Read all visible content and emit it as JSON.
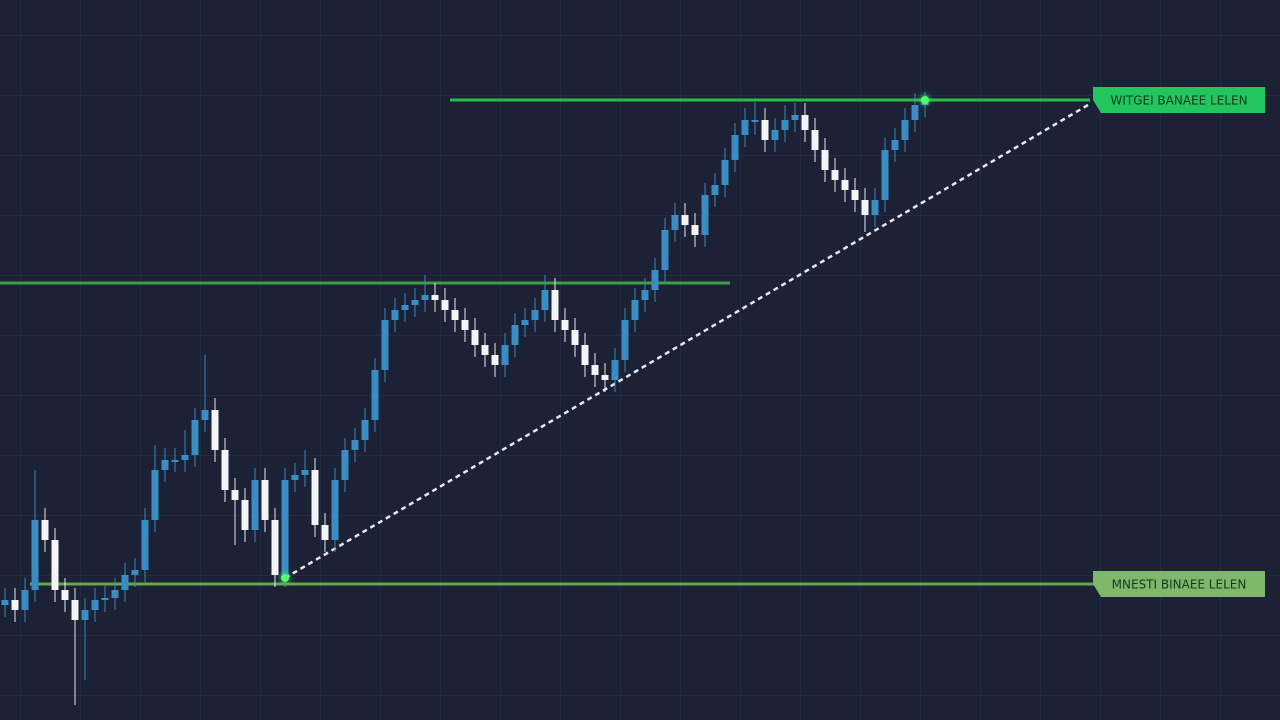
{
  "chart_data": {
    "type": "candlestick",
    "xlim": [
      -0.5,
      127.5
    ],
    "ylim": [
      0,
      720
    ],
    "up_color": "#3a8dc4",
    "down_color": "#f2f4f8",
    "x": [
      0,
      1,
      2,
      3,
      4,
      5,
      6,
      7,
      8,
      9,
      10,
      11,
      12,
      13,
      14,
      15,
      16,
      17,
      18,
      19,
      20,
      21,
      22,
      23,
      24,
      25,
      26,
      27,
      28,
      29,
      30,
      31,
      32,
      33,
      34,
      35,
      36,
      37,
      38,
      39,
      40,
      41,
      42,
      43,
      44,
      45,
      46,
      47,
      48,
      49,
      50,
      51,
      52,
      53,
      54,
      55,
      56,
      57,
      58,
      59,
      60,
      61,
      62,
      63,
      64,
      65,
      66,
      67,
      68,
      69,
      70,
      71,
      72,
      73,
      74,
      75,
      76,
      77,
      78,
      79,
      80,
      81,
      82,
      83,
      84,
      85,
      86,
      87,
      88,
      89,
      90,
      91,
      92
    ],
    "open": [
      115,
      120,
      110,
      130,
      200,
      180,
      130,
      120,
      100,
      110,
      120,
      122,
      130,
      145,
      150,
      200,
      250,
      260,
      260,
      265,
      300,
      310,
      270,
      230,
      220,
      190,
      240,
      200,
      145,
      240,
      245,
      250,
      195,
      180,
      240,
      270,
      280,
      300,
      350,
      400,
      410,
      415,
      420,
      425,
      420,
      410,
      400,
      390,
      375,
      365,
      355,
      375,
      395,
      400,
      410,
      430,
      400,
      390,
      375,
      355,
      345,
      340,
      360,
      400,
      420,
      430,
      450,
      490,
      505,
      495,
      485,
      525,
      535,
      560,
      585,
      600,
      600,
      580,
      590,
      600,
      605,
      590,
      570,
      550,
      540,
      530,
      520,
      505,
      520,
      570,
      580,
      600,
      615
    ],
    "high": [
      132,
      132,
      142,
      250,
      212,
      192,
      142,
      132,
      122,
      132,
      134,
      142,
      157,
      162,
      212,
      275,
      272,
      272,
      290,
      312,
      365,
      322,
      282,
      242,
      232,
      252,
      252,
      212,
      252,
      257,
      270,
      262,
      207,
      252,
      282,
      292,
      312,
      362,
      412,
      422,
      427,
      432,
      445,
      437,
      432,
      422,
      412,
      402,
      387,
      377,
      387,
      407,
      412,
      422,
      445,
      442,
      412,
      402,
      387,
      367,
      357,
      372,
      412,
      432,
      442,
      462,
      502,
      517,
      517,
      507,
      537,
      547,
      572,
      597,
      612,
      618,
      612,
      602,
      615,
      617,
      617,
      602,
      582,
      562,
      552,
      542,
      532,
      532,
      582,
      592,
      612,
      627,
      628
    ],
    "low": [
      103,
      98,
      98,
      118,
      168,
      118,
      108,
      15,
      40,
      98,
      108,
      110,
      118,
      133,
      138,
      188,
      238,
      248,
      248,
      253,
      288,
      258,
      218,
      175,
      178,
      178,
      188,
      133,
      133,
      228,
      233,
      183,
      168,
      168,
      228,
      258,
      268,
      288,
      338,
      388,
      398,
      403,
      408,
      408,
      398,
      388,
      378,
      363,
      353,
      343,
      343,
      363,
      383,
      388,
      398,
      388,
      378,
      363,
      343,
      333,
      328,
      328,
      348,
      388,
      408,
      418,
      438,
      478,
      483,
      473,
      473,
      513,
      523,
      548,
      573,
      585,
      568,
      568,
      578,
      588,
      578,
      558,
      538,
      528,
      518,
      508,
      488,
      493,
      508,
      558,
      568,
      588,
      603
    ],
    "close": [
      120,
      110,
      130,
      200,
      180,
      130,
      120,
      100,
      110,
      120,
      122,
      130,
      145,
      150,
      200,
      250,
      260,
      260,
      265,
      300,
      310,
      270,
      230,
      220,
      190,
      240,
      200,
      145,
      240,
      245,
      250,
      195,
      180,
      240,
      270,
      280,
      300,
      350,
      400,
      410,
      415,
      420,
      425,
      420,
      410,
      400,
      390,
      375,
      365,
      355,
      375,
      395,
      400,
      410,
      430,
      400,
      390,
      375,
      355,
      345,
      340,
      360,
      400,
      420,
      430,
      450,
      490,
      505,
      495,
      485,
      525,
      535,
      560,
      585,
      600,
      600,
      580,
      590,
      600,
      605,
      590,
      570,
      550,
      540,
      530,
      520,
      505,
      520,
      570,
      580,
      600,
      615,
      620
    ],
    "levels": [
      {
        "value": 620,
        "x": [
          44.5,
          108.5
        ],
        "color": "#2ecc4a",
        "label": "WITGEI BANAEE LELEN",
        "label_color": "#22c55e"
      },
      {
        "value": 437,
        "x": [
          -0.5,
          72.5
        ],
        "color": "#3fae3f"
      },
      {
        "value": 136,
        "x": [
          2.5,
          109.5
        ],
        "color": "#72b54f",
        "label": "MNESTI BINAEE LELEN",
        "label_color": "#7fb86a"
      }
    ],
    "trend": {
      "x": [
        28,
        108.3
      ],
      "y": [
        142,
        615
      ],
      "color": "#e6e9ef",
      "dashed": true
    },
    "markers": [
      {
        "x": 28,
        "y": 142,
        "color": "#4dff6a"
      },
      {
        "x": 92,
        "y": 620,
        "color": "#4dff6a"
      }
    ]
  }
}
